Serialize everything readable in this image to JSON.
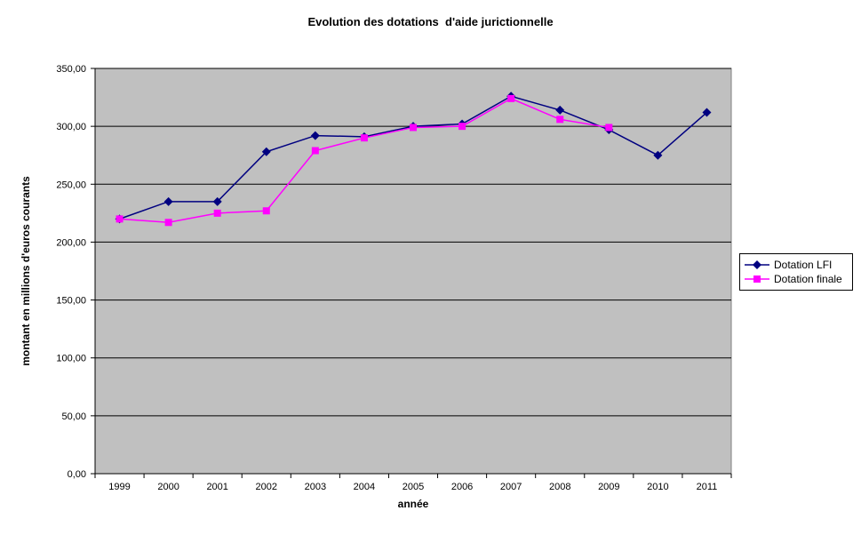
{
  "title": "Evolution des dotations  d'aide jurictionnelle",
  "chart_data": {
    "type": "line",
    "title": "Evolution des dotations  d'aide jurictionnelle",
    "xlabel": "année",
    "ylabel": "montant en millions d'euros courants",
    "categories": [
      "1999",
      "2000",
      "2001",
      "2002",
      "2003",
      "2004",
      "2005",
      "2006",
      "2007",
      "2008",
      "2009",
      "2010",
      "2011"
    ],
    "series": [
      {
        "name": "Dotation LFI",
        "color": "#000080",
        "marker": "diamond",
        "values": [
          220,
          235,
          235,
          278,
          292,
          291,
          300,
          302,
          326,
          314,
          297,
          275,
          312
        ]
      },
      {
        "name": "Dotation finale",
        "color": "#FF00FF",
        "marker": "square",
        "values": [
          220,
          217,
          225,
          227,
          279,
          290,
          299,
          300,
          324,
          306,
          299,
          null,
          null
        ]
      }
    ],
    "ylim": [
      0,
      350
    ],
    "ytick_step": 50,
    "ytick_labels": [
      "0,00",
      "50,00",
      "100,00",
      "150,00",
      "200,00",
      "250,00",
      "300,00",
      "350,00"
    ],
    "grid": true,
    "legend_position": "right",
    "plot_bg_color": "#C0C0C0",
    "plot_border_color": "#808080",
    "gridline_color": "#000000",
    "axis_color": "#000000"
  }
}
